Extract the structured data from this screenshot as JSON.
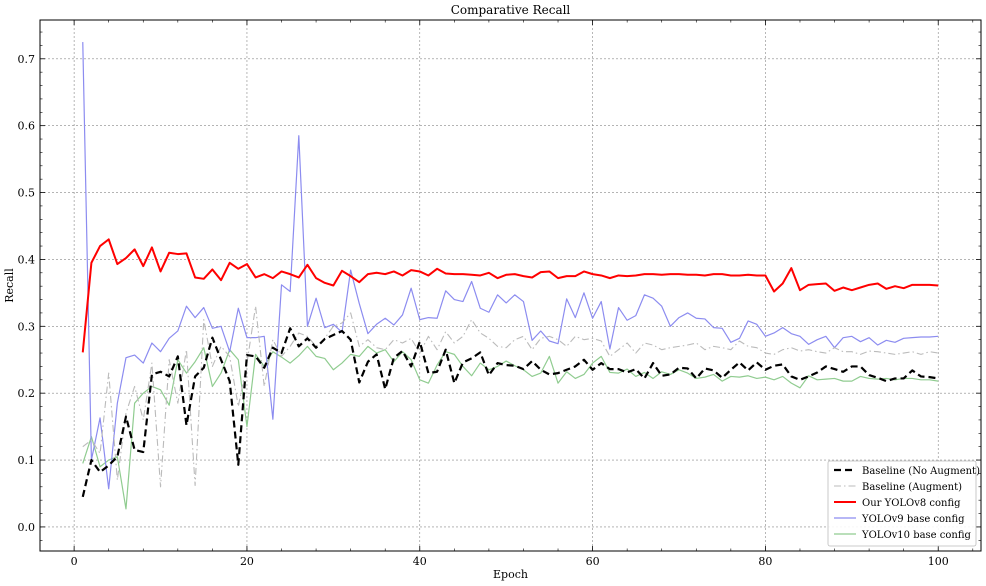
{
  "chart_data": {
    "type": "line",
    "title": "Comparative Recall",
    "xlabel": "Epoch",
    "ylabel": "Recall",
    "xlim": [
      -3.95,
      104.95
    ],
    "ylim": [
      -0.036,
      0.758
    ],
    "xticks": [
      0,
      20,
      40,
      60,
      80,
      100
    ],
    "yticks": [
      0.0,
      0.1,
      0.2,
      0.3,
      0.4,
      0.5,
      0.6,
      0.7
    ],
    "xtick_labels": [
      "0",
      "20",
      "40",
      "60",
      "80",
      "100"
    ],
    "ytick_labels": [
      "0.0",
      "0.1",
      "0.2",
      "0.3",
      "0.4",
      "0.5",
      "0.6",
      "0.7"
    ],
    "grid": true,
    "legend_position": "bottom-right",
    "x": [
      1,
      2,
      3,
      4,
      5,
      6,
      7,
      8,
      9,
      10,
      11,
      12,
      13,
      14,
      15,
      16,
      17,
      18,
      19,
      20,
      21,
      22,
      23,
      24,
      25,
      26,
      27,
      28,
      29,
      30,
      31,
      32,
      33,
      34,
      35,
      36,
      37,
      38,
      39,
      40,
      41,
      42,
      43,
      44,
      45,
      46,
      47,
      48,
      49,
      50,
      51,
      52,
      53,
      54,
      55,
      56,
      57,
      58,
      59,
      60,
      61,
      62,
      63,
      64,
      65,
      66,
      67,
      68,
      69,
      70,
      71,
      72,
      73,
      74,
      75,
      76,
      77,
      78,
      79,
      80,
      81,
      82,
      83,
      84,
      85,
      86,
      87,
      88,
      89,
      90,
      91,
      92,
      93,
      94,
      95,
      96,
      97,
      98,
      99,
      100
    ],
    "series": [
      {
        "name": "Baseline (No Augment)",
        "color": "#000000",
        "style": "dashed",
        "values": [
          0.045,
          0.1,
          0.082,
          0.092,
          0.105,
          0.165,
          0.115,
          0.112,
          0.228,
          0.232,
          0.225,
          0.255,
          0.152,
          0.225,
          0.238,
          0.283,
          0.25,
          0.218,
          0.093,
          0.257,
          0.255,
          0.238,
          0.268,
          0.26,
          0.297,
          0.27,
          0.282,
          0.268,
          0.281,
          0.287,
          0.293,
          0.28,
          0.216,
          0.247,
          0.258,
          0.206,
          0.253,
          0.263,
          0.24,
          0.277,
          0.23,
          0.232,
          0.265,
          0.215,
          0.246,
          0.252,
          0.261,
          0.227,
          0.245,
          0.242,
          0.241,
          0.236,
          0.248,
          0.235,
          0.228,
          0.23,
          0.235,
          0.24,
          0.25,
          0.235,
          0.245,
          0.236,
          0.236,
          0.231,
          0.236,
          0.222,
          0.245,
          0.226,
          0.228,
          0.238,
          0.237,
          0.222,
          0.237,
          0.234,
          0.223,
          0.235,
          0.246,
          0.234,
          0.246,
          0.235,
          0.241,
          0.243,
          0.225,
          0.22,
          0.225,
          0.231,
          0.24,
          0.236,
          0.232,
          0.24,
          0.24,
          0.227,
          0.223,
          0.218,
          0.222,
          0.222,
          0.234,
          0.225,
          0.224,
          0.222
        ]
      },
      {
        "name": "Baseline (Augment)",
        "color": "#bbbbbb",
        "style": "dashdot",
        "values": [
          0.12,
          0.13,
          0.11,
          0.23,
          0.07,
          0.17,
          0.21,
          0.16,
          0.245,
          0.06,
          0.25,
          0.185,
          0.265,
          0.062,
          0.31,
          0.24,
          0.27,
          0.255,
          0.18,
          0.245,
          0.33,
          0.21,
          0.28,
          0.255,
          0.27,
          0.29,
          0.285,
          0.27,
          0.282,
          0.3,
          0.305,
          0.32,
          0.27,
          0.28,
          0.268,
          0.265,
          0.28,
          0.275,
          0.282,
          0.26,
          0.285,
          0.265,
          0.292,
          0.275,
          0.285,
          0.31,
          0.29,
          0.282,
          0.27,
          0.268,
          0.28,
          0.285,
          0.265,
          0.282,
          0.285,
          0.28,
          0.27,
          0.285,
          0.28,
          0.282,
          0.278,
          0.255,
          0.265,
          0.275,
          0.26,
          0.275,
          0.272,
          0.265,
          0.268,
          0.27,
          0.272,
          0.275,
          0.265,
          0.27,
          0.268,
          0.265,
          0.278,
          0.27,
          0.268,
          0.26,
          0.258,
          0.265,
          0.268,
          0.263,
          0.265,
          0.262,
          0.26,
          0.268,
          0.262,
          0.262,
          0.258,
          0.263,
          0.262,
          0.26,
          0.258,
          0.26,
          0.262,
          0.258,
          0.262,
          0.26
        ]
      },
      {
        "name": "Our YOLOv8 config",
        "color": "#ff0000",
        "style": "solid",
        "values": [
          0.261,
          0.395,
          0.42,
          0.43,
          0.393,
          0.402,
          0.415,
          0.39,
          0.418,
          0.382,
          0.41,
          0.408,
          0.409,
          0.373,
          0.371,
          0.385,
          0.369,
          0.395,
          0.386,
          0.393,
          0.373,
          0.378,
          0.372,
          0.382,
          0.378,
          0.373,
          0.392,
          0.372,
          0.365,
          0.361,
          0.383,
          0.375,
          0.366,
          0.378,
          0.38,
          0.378,
          0.382,
          0.376,
          0.384,
          0.382,
          0.376,
          0.386,
          0.379,
          0.378,
          0.378,
          0.377,
          0.376,
          0.38,
          0.372,
          0.377,
          0.378,
          0.375,
          0.373,
          0.381,
          0.382,
          0.372,
          0.375,
          0.375,
          0.382,
          0.378,
          0.376,
          0.372,
          0.376,
          0.375,
          0.376,
          0.378,
          0.378,
          0.377,
          0.378,
          0.378,
          0.377,
          0.377,
          0.376,
          0.378,
          0.378,
          0.376,
          0.376,
          0.377,
          0.376,
          0.376,
          0.352,
          0.364,
          0.387,
          0.354,
          0.362,
          0.363,
          0.364,
          0.353,
          0.358,
          0.354,
          0.358,
          0.362,
          0.364,
          0.356,
          0.36,
          0.357,
          0.362,
          0.362,
          0.362,
          0.361
        ]
      },
      {
        "name": "YOLOv9 base config",
        "color": "#8c8cf0",
        "style": "solid",
        "values": [
          0.725,
          0.1,
          0.163,
          0.057,
          0.185,
          0.253,
          0.257,
          0.245,
          0.275,
          0.262,
          0.282,
          0.293,
          0.33,
          0.313,
          0.328,
          0.297,
          0.3,
          0.262,
          0.327,
          0.283,
          0.283,
          0.285,
          0.161,
          0.362,
          0.352,
          0.585,
          0.3,
          0.342,
          0.298,
          0.303,
          0.291,
          0.384,
          0.334,
          0.289,
          0.303,
          0.312,
          0.302,
          0.317,
          0.357,
          0.31,
          0.313,
          0.312,
          0.353,
          0.34,
          0.337,
          0.367,
          0.327,
          0.321,
          0.347,
          0.335,
          0.347,
          0.337,
          0.279,
          0.293,
          0.278,
          0.274,
          0.341,
          0.313,
          0.35,
          0.312,
          0.337,
          0.266,
          0.328,
          0.309,
          0.316,
          0.347,
          0.342,
          0.33,
          0.3,
          0.313,
          0.32,
          0.312,
          0.311,
          0.298,
          0.297,
          0.276,
          0.282,
          0.308,
          0.303,
          0.285,
          0.29,
          0.298,
          0.289,
          0.285,
          0.273,
          0.28,
          0.285,
          0.268,
          0.283,
          0.285,
          0.277,
          0.283,
          0.272,
          0.279,
          0.276,
          0.282,
          0.283,
          0.284,
          0.284,
          0.285
        ]
      },
      {
        "name": "YOLOv10 base config",
        "color": "#90cc90",
        "style": "solid",
        "values": [
          0.095,
          0.135,
          0.09,
          0.1,
          0.105,
          0.027,
          0.185,
          0.2,
          0.21,
          0.205,
          0.182,
          0.25,
          0.23,
          0.247,
          0.268,
          0.21,
          0.23,
          0.265,
          0.25,
          0.15,
          0.258,
          0.24,
          0.262,
          0.254,
          0.245,
          0.256,
          0.27,
          0.255,
          0.252,
          0.235,
          0.245,
          0.258,
          0.255,
          0.27,
          0.26,
          0.265,
          0.247,
          0.262,
          0.25,
          0.22,
          0.215,
          0.242,
          0.262,
          0.258,
          0.24,
          0.226,
          0.245,
          0.235,
          0.24,
          0.248,
          0.241,
          0.235,
          0.225,
          0.23,
          0.255,
          0.215,
          0.232,
          0.222,
          0.228,
          0.245,
          0.255,
          0.231,
          0.23,
          0.236,
          0.225,
          0.231,
          0.222,
          0.232,
          0.228,
          0.235,
          0.23,
          0.222,
          0.224,
          0.228,
          0.218,
          0.225,
          0.224,
          0.226,
          0.222,
          0.224,
          0.22,
          0.225,
          0.215,
          0.208,
          0.226,
          0.22,
          0.221,
          0.222,
          0.218,
          0.218,
          0.225,
          0.222,
          0.221,
          0.222,
          0.22,
          0.222,
          0.222,
          0.22,
          0.22,
          0.218
        ]
      }
    ]
  }
}
